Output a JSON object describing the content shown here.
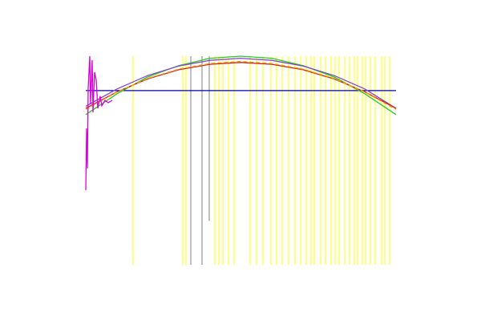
{
  "chart_data": {
    "type": "line",
    "xlim": [
      0,
      387
    ],
    "ylim": [
      0,
      1
    ],
    "vline_groups": [
      {
        "color": "#ffff00",
        "x": [
          59,
          121,
          125,
          161,
          166,
          171,
          178,
          185,
          205,
          213,
          221,
          231,
          238,
          245,
          253,
          261,
          268,
          275,
          281,
          285,
          293,
          299,
          306,
          311,
          316,
          323,
          329,
          335,
          339,
          345,
          349,
          355,
          361,
          369,
          373,
          379
        ]
      },
      {
        "color": "#808080",
        "x": [
          131,
          145
        ]
      },
      {
        "color": "#808080",
        "x": [
          154
        ],
        "ymin": 0.21
      }
    ],
    "series": [
      {
        "color": "#0000aa",
        "x": [
          0,
          387
        ],
        "values": [
          0.835,
          0.835
        ]
      },
      {
        "color": "#22cc22",
        "x": [
          0,
          39,
          77,
          116,
          155,
          193,
          232,
          271,
          310,
          348,
          387
        ],
        "values": [
          0.72,
          0.82,
          0.9,
          0.955,
          0.99,
          1.0,
          0.99,
          0.955,
          0.9,
          0.82,
          0.72
        ]
      },
      {
        "color": "#8844cc",
        "x": [
          0,
          39,
          77,
          116,
          155,
          193,
          232,
          271,
          310,
          348,
          387
        ],
        "values": [
          0.76,
          0.843,
          0.907,
          0.953,
          0.98,
          0.99,
          0.98,
          0.953,
          0.907,
          0.843,
          0.75
        ]
      },
      {
        "color": "#cc2222",
        "x": [
          0,
          39,
          77,
          116,
          155,
          193,
          232,
          271,
          310,
          348,
          387
        ],
        "values": [
          0.75,
          0.829,
          0.891,
          0.935,
          0.961,
          0.97,
          0.961,
          0.935,
          0.891,
          0.829,
          0.75
        ]
      },
      {
        "color": "#ff9900",
        "x": [
          0,
          39,
          77,
          116,
          155,
          193,
          232,
          271,
          310,
          348,
          387
        ],
        "values": [
          0.745,
          0.828,
          0.893,
          0.938,
          0.965,
          0.975,
          0.965,
          0.938,
          0.893,
          0.828,
          0.745
        ],
        "dashed": true
      },
      {
        "color": "#dd00dd",
        "x": [
          0,
          1,
          2,
          3,
          5,
          6,
          8,
          9,
          11,
          13,
          15,
          18,
          20,
          24,
          28,
          33
        ],
        "values": [
          0.358,
          0.654,
          0.462,
          0.846,
          1.0,
          0.769,
          0.981,
          0.731,
          0.923,
          0.885,
          0.75,
          0.808,
          0.762,
          0.788,
          0.777,
          0.788
        ]
      }
    ]
  }
}
